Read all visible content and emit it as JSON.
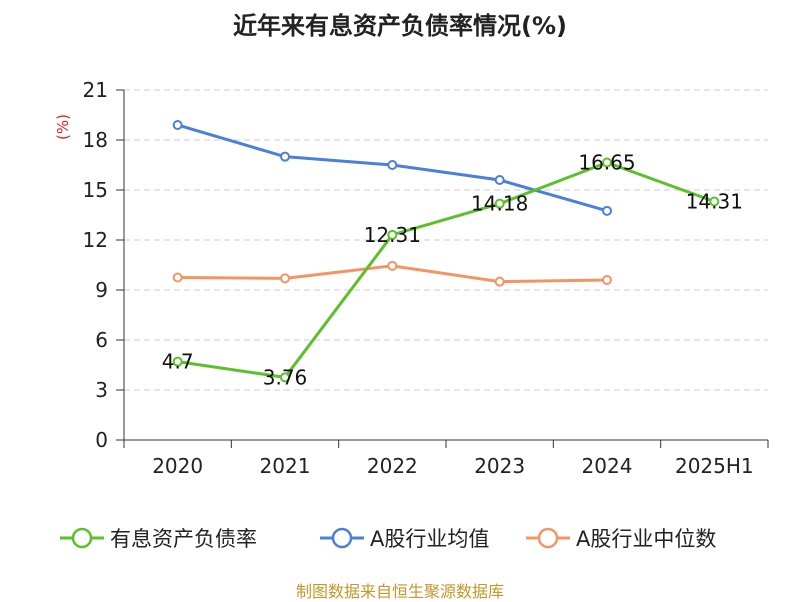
{
  "colors": {
    "green": "#5cc02a",
    "blue": "#4a80dc",
    "orange": "#f59463",
    "grid": "#cccccc",
    "axis": "#333333",
    "unit_red": "#e02020",
    "footer_gold": "#c8962a"
  },
  "footer": {
    "source": "制图数据来自恒生聚源数据库"
  },
  "chart_data": {
    "type": "line",
    "title": "近年来有息资产负债率情况(%)",
    "ylabel": "(%)",
    "xlabel": "",
    "categories": [
      "2020",
      "2021",
      "2022",
      "2023",
      "2024",
      "2025H1"
    ],
    "ylim": [
      0,
      21
    ],
    "yticks": [
      0,
      3,
      6,
      9,
      12,
      15,
      18,
      21
    ],
    "grid": true,
    "legend_position": "bottom",
    "series": [
      {
        "name": "有息资产负债率",
        "color_key": "green",
        "values": [
          4.7,
          3.76,
          12.31,
          14.18,
          16.65,
          14.31
        ],
        "labels": [
          "4.7",
          "3.76",
          "12.31",
          "14.18",
          "16.65",
          "14.31"
        ]
      },
      {
        "name": "A股行业均值",
        "color_key": "blue",
        "values": [
          18.9,
          17.0,
          16.5,
          15.6,
          13.75,
          null
        ]
      },
      {
        "name": "A股行业中位数",
        "color_key": "orange",
        "values": [
          9.75,
          9.7,
          10.45,
          9.5,
          9.6,
          null
        ]
      }
    ]
  }
}
